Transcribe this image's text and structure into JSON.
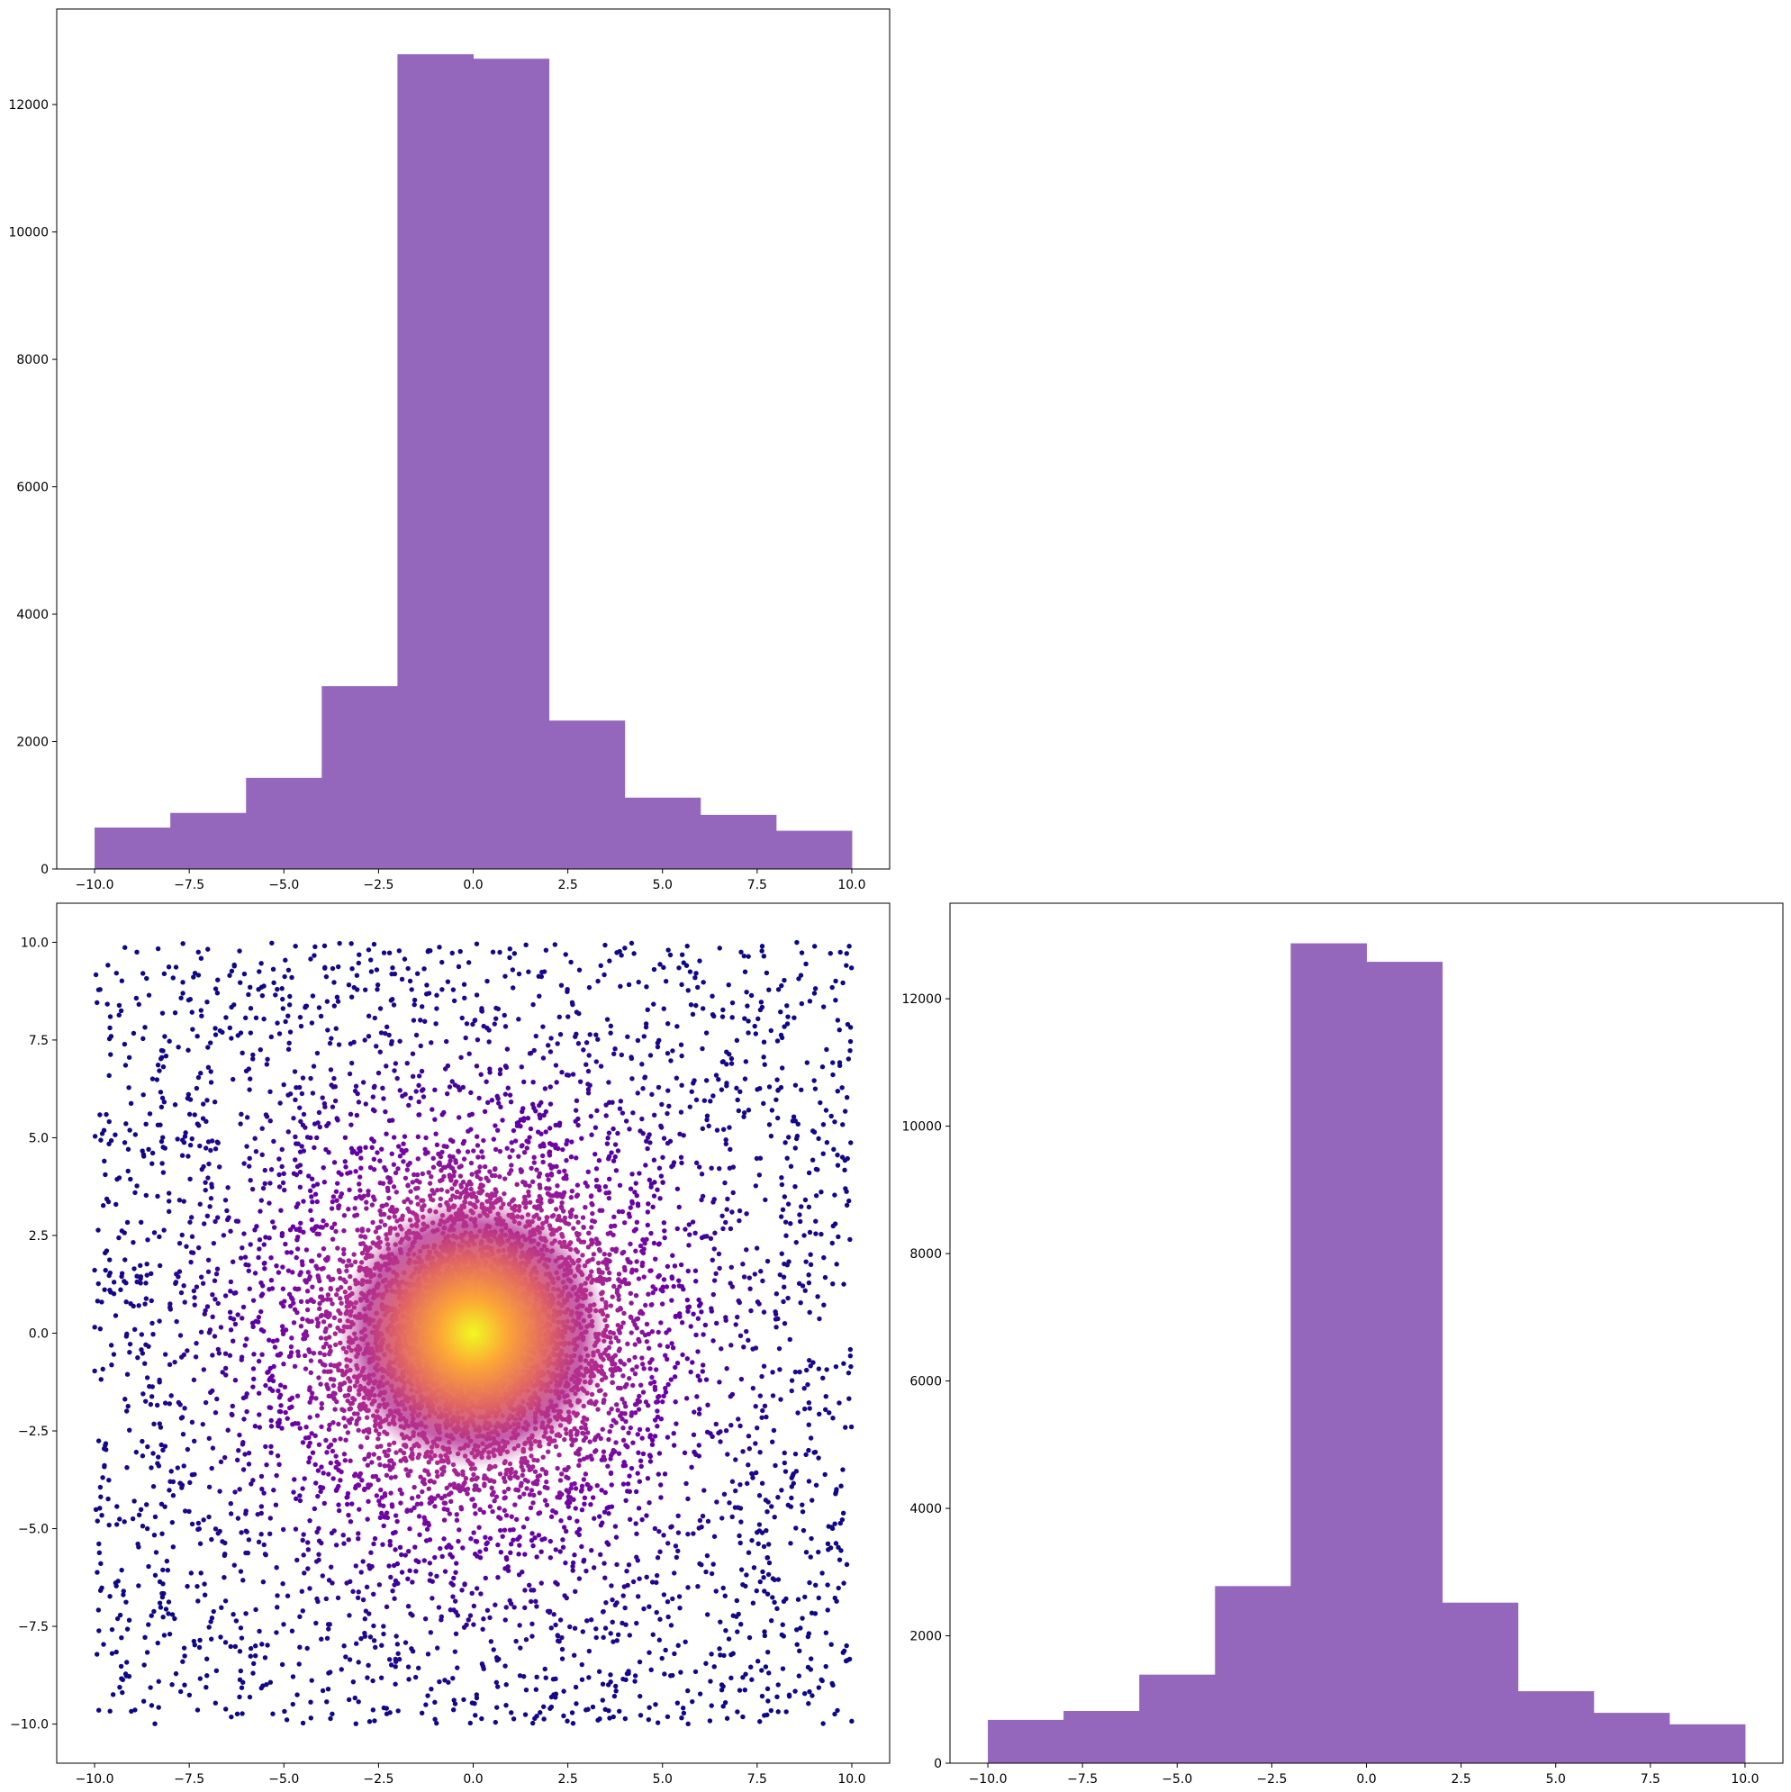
{
  "figure": {
    "background": "#ffffff"
  },
  "chart_data": [
    {
      "type": "bar",
      "subtype": "histogram",
      "panel": "top-left",
      "title": "",
      "xlabel": "",
      "ylabel": "",
      "bin_edges": [
        -10,
        -8,
        -6,
        -4,
        -2,
        0,
        2,
        4,
        6,
        8,
        10
      ],
      "values": [
        650,
        880,
        1430,
        2870,
        12790,
        12720,
        2330,
        1120,
        850,
        600
      ],
      "xlim": [
        -11,
        11
      ],
      "ylim": [
        0,
        13500
      ],
      "xticks": [
        -10,
        -7.5,
        -5,
        -2.5,
        0,
        2.5,
        5,
        7.5,
        10
      ],
      "xtick_labels": [
        "−10.0",
        "−7.5",
        "−5.0",
        "−2.5",
        "0.0",
        "2.5",
        "5.0",
        "7.5",
        "10.0"
      ],
      "yticks": [
        0,
        2000,
        4000,
        6000,
        8000,
        10000,
        12000
      ],
      "ytick_labels": [
        "0",
        "2000",
        "4000",
        "6000",
        "8000",
        "10000",
        "12000"
      ],
      "bar_color": "#9467bd",
      "grid": false
    },
    {
      "type": "scatter",
      "panel": "bottom-left",
      "title": "",
      "xlabel": "",
      "ylabel": "",
      "description": "about 20000 points uniform on the square [-10,10]x[-10,10], colored by local density (plasma colormap); dense gaussian core at the origin",
      "xlim": [
        -11,
        11
      ],
      "ylim": [
        -11,
        11
      ],
      "xticks": [
        -10,
        -7.5,
        -5,
        -2.5,
        0,
        2.5,
        5,
        7.5,
        10
      ],
      "xtick_labels": [
        "−10.0",
        "−7.5",
        "−5.0",
        "−2.5",
        "0.0",
        "2.5",
        "5.0",
        "7.5",
        "10.0"
      ],
      "yticks": [
        -10,
        -7.5,
        -5,
        -2.5,
        0,
        2.5,
        5,
        7.5,
        10
      ],
      "ytick_labels": [
        "−10.0",
        "−7.5",
        "−5.0",
        "−2.5",
        "0.0",
        "2.5",
        "5.0",
        "7.5",
        "10.0"
      ],
      "colormap": "plasma",
      "colors": [
        "#0d0887",
        "#6a00a8",
        "#b12a90",
        "#e16462",
        "#fca636",
        "#f0f921"
      ],
      "grid": false
    },
    {
      "type": "bar",
      "subtype": "histogram",
      "panel": "bottom-right",
      "title": "",
      "xlabel": "",
      "ylabel": "",
      "bin_edges": [
        -10,
        -8,
        -6,
        -4,
        -2,
        0,
        2,
        4,
        6,
        8,
        10
      ],
      "values": [
        680,
        820,
        1390,
        2780,
        12870,
        12580,
        2520,
        1130,
        790,
        610
      ],
      "xlim": [
        -11,
        11
      ],
      "ylim": [
        0,
        13500
      ],
      "xticks": [
        -10,
        -7.5,
        -5,
        -2.5,
        0,
        2.5,
        5,
        7.5,
        10
      ],
      "xtick_labels": [
        "−10.0",
        "−7.5",
        "−5.0",
        "−2.5",
        "0.0",
        "2.5",
        "5.0",
        "7.5",
        "10.0"
      ],
      "yticks": [
        0,
        2000,
        4000,
        6000,
        8000,
        10000,
        12000
      ],
      "ytick_labels": [
        "0",
        "2000",
        "4000",
        "6000",
        "8000",
        "10000",
        "12000"
      ],
      "bar_color": "#9467bd",
      "grid": false
    }
  ]
}
